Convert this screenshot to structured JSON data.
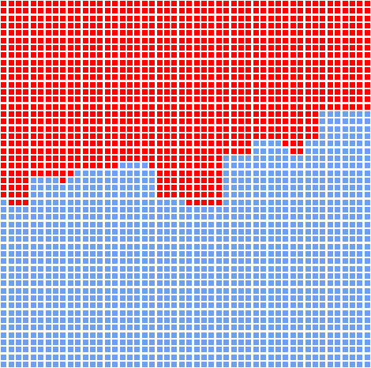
{
  "grid": {
    "columns": 50,
    "rows": 50,
    "colors": {
      "red": "#ff0000",
      "blue": "#6fa0f0",
      "background": "#ffffff"
    },
    "red_depth_by_column": [
      27,
      28,
      28,
      28,
      24,
      24,
      24,
      24,
      25,
      24,
      23,
      23,
      23,
      23,
      23,
      23,
      22,
      22,
      22,
      22,
      23,
      27,
      27,
      27,
      27,
      28,
      28,
      28,
      28,
      28,
      21,
      21,
      21,
      21,
      19,
      19,
      19,
      19,
      20,
      21,
      21,
      19,
      19,
      15,
      15,
      15,
      15,
      15,
      15,
      15
    ]
  }
}
